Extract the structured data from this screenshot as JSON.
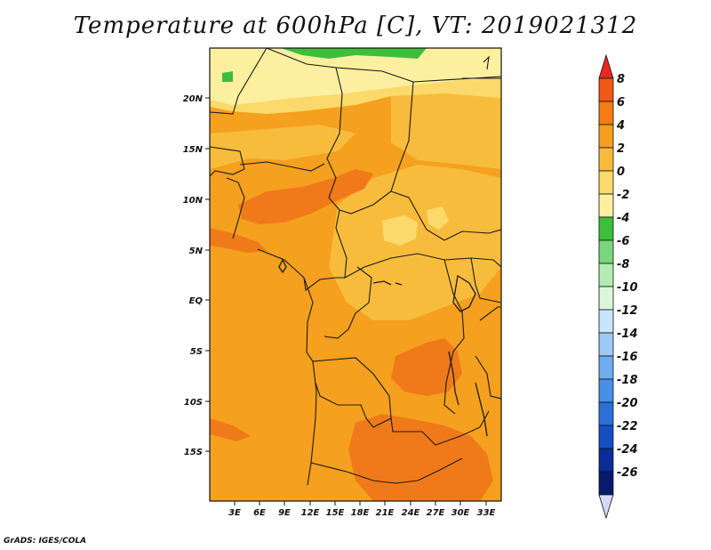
{
  "title": "Temperature at 600hPa [C], VT: 2019021312",
  "credit": "GrADS: IGES/COLA",
  "lat_ticks": [
    "20N",
    "15N",
    "10N",
    "5N",
    "EQ",
    "5S",
    "10S",
    "15S"
  ],
  "lon_ticks": [
    "3E",
    "6E",
    "9E",
    "12E",
    "15E",
    "18E",
    "21E",
    "24E",
    "27E",
    "30E",
    "33E"
  ],
  "colorbar": {
    "labels": [
      "8",
      "6",
      "4",
      "2",
      "0",
      "-2",
      "-4",
      "-6",
      "-8",
      "-10",
      "-12",
      "-14",
      "-16",
      "-18",
      "-20",
      "-22",
      "-24",
      "-26"
    ],
    "colors": [
      "#e8281e",
      "#f05a14",
      "#f57d14",
      "#f5a01e",
      "#f8bc3c",
      "#fbd96a",
      "#fcefa0",
      "#3cbf3c",
      "#7ad67a",
      "#b2ecb2",
      "#dcf6dc",
      "#c8e6fa",
      "#9ccaf5",
      "#6eadf0",
      "#4690e6",
      "#2a70d8",
      "#1450c0",
      "#0a2c98",
      "#081a6c",
      "#d6d8f6"
    ]
  },
  "map_colors": {
    "warm4to6": "#f07a1a",
    "warm2to4": "#f5a01e",
    "warm0to2": "#f8bc3c",
    "cool": "#fbd96a",
    "cold": "#fcefa0",
    "green": "#3cbf3c"
  }
}
